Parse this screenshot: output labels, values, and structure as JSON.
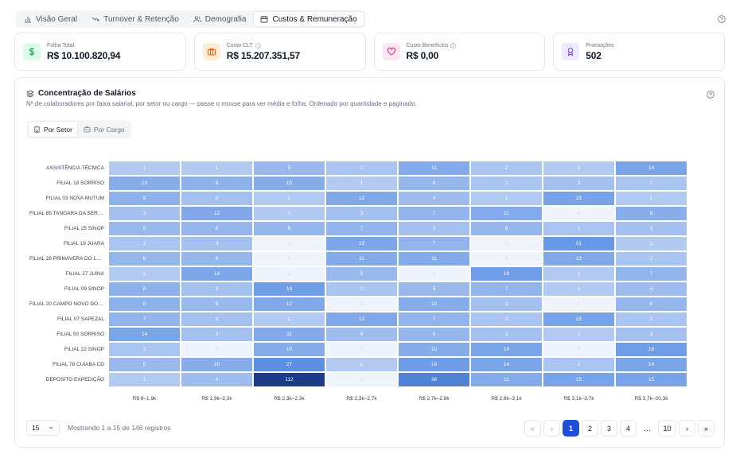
{
  "tabs": [
    {
      "label": "Visão Geral",
      "icon": "bar-chart-icon",
      "active": false
    },
    {
      "label": "Turnover & Retenção",
      "icon": "trending-down-icon",
      "active": false
    },
    {
      "label": "Demografia",
      "icon": "users-icon",
      "active": false
    },
    {
      "label": "Custos & Remuneração",
      "icon": "calendar-icon",
      "active": true
    }
  ],
  "kpis": [
    {
      "label": "Folha Total",
      "value": "R$ 10.100.820,94",
      "icon": "dollar-icon",
      "color": "#16a34a",
      "bg": "#dcfce7"
    },
    {
      "label": "Custo CLT",
      "value": "R$ 15.207.351,57",
      "icon": "briefcase-icon",
      "color": "#ea580c",
      "bg": "#ffedd5"
    },
    {
      "label": "Custo Benefícios",
      "value": "R$ 0,00",
      "icon": "heart-icon",
      "color": "#db2777",
      "bg": "#fce7f3"
    },
    {
      "label": "Promoções",
      "value": "502",
      "icon": "award-icon",
      "color": "#7c3aed",
      "bg": "#ede9fe"
    }
  ],
  "panel": {
    "title": "Concentração de Salários",
    "subtitle": "Nº de colaboradores por faixa salarial, por setor ou cargo — passe o mouse para ver média e folha. Ordenado por quantidade e paginado.",
    "segments": [
      {
        "label": "Por Setor",
        "icon": "building-icon",
        "active": true
      },
      {
        "label": "Por Cargo",
        "icon": "briefcase-icon",
        "active": false
      }
    ]
  },
  "chart_data": {
    "type": "heatmap",
    "columns": [
      "R$ 8–1,9k",
      "R$ 1,9k–2,3k",
      "R$ 2,3k–2,3k",
      "R$ 2,3k–2,7k",
      "R$ 2,7k–2,8k",
      "R$ 2,8k–3,1k",
      "R$ 3,1k–3,7k",
      "R$ 3,7k–20,3k"
    ],
    "rows": [
      {
        "label": "ASSISTÊNCIA TÉCNICA",
        "values": [
          1,
          1,
          5,
          2,
          11,
          2,
          1,
          14
        ]
      },
      {
        "label": "FILIAL 18 SORRISO",
        "values": [
          10,
          8,
          10,
          1,
          6,
          2,
          3,
          2
        ]
      },
      {
        "label": "FILIAL 03 NOVA MUTUM",
        "values": [
          8,
          3,
          1,
          12,
          4,
          1,
          15,
          1
        ]
      },
      {
        "label": "FILIAL 85 TANGARA DA SERRA",
        "values": [
          3,
          12,
          1,
          3,
          7,
          11,
          0,
          9
        ]
      },
      {
        "label": "FILIAL 25 SINOP",
        "values": [
          5,
          6,
          6,
          7,
          3,
          6,
          2,
          3
        ]
      },
      {
        "label": "FILIAL 19 JUARA",
        "values": [
          2,
          3,
          0,
          13,
          7,
          0,
          21,
          1
        ]
      },
      {
        "label": "FILIAL 28 PRIMAVERA DO LESTE",
        "values": [
          6,
          6,
          0,
          11,
          11,
          0,
          12,
          2
        ]
      },
      {
        "label": "FILIAL 27 JUINA",
        "values": [
          1,
          13,
          0,
          5,
          0,
          18,
          1,
          7
        ]
      },
      {
        "label": "FILIAL 09 SINOP",
        "values": [
          8,
          3,
          18,
          2,
          5,
          7,
          1,
          4
        ]
      },
      {
        "label": "FILIAL 20 CAMPO NOVO DO PARECIS",
        "values": [
          8,
          5,
          12,
          0,
          10,
          3,
          0,
          6
        ]
      },
      {
        "label": "FILIAL 07 SAPEZAL",
        "values": [
          7,
          3,
          1,
          12,
          7,
          2,
          15,
          2
        ]
      },
      {
        "label": "FILIAL 50 SORRISO",
        "values": [
          14,
          3,
          11,
          4,
          6,
          3,
          1,
          3
        ]
      },
      {
        "label": "FILIAL 22 SINOP",
        "values": [
          2,
          0,
          10,
          0,
          10,
          14,
          0,
          18
        ]
      },
      {
        "label": "FILIAL 78 CUIABA CD",
        "values": [
          5,
          10,
          27,
          1,
          19,
          14,
          2,
          14
        ]
      },
      {
        "label": "DEPOSITO EXPEDIÇÃO",
        "values": [
          1,
          4,
          112,
          0,
          38,
          11,
          15,
          15
        ]
      }
    ],
    "color_scale": {
      "low": "#eef3fc",
      "high": "#1e3a8a"
    }
  },
  "footer": {
    "page_size": "15",
    "showing": "Mostrando 1 a 15 de 146 registros",
    "pages": [
      "1",
      "2",
      "3",
      "4",
      "…",
      "10"
    ],
    "current_page": "1",
    "first": "«",
    "prev": "‹",
    "next": "›",
    "last": "»"
  }
}
